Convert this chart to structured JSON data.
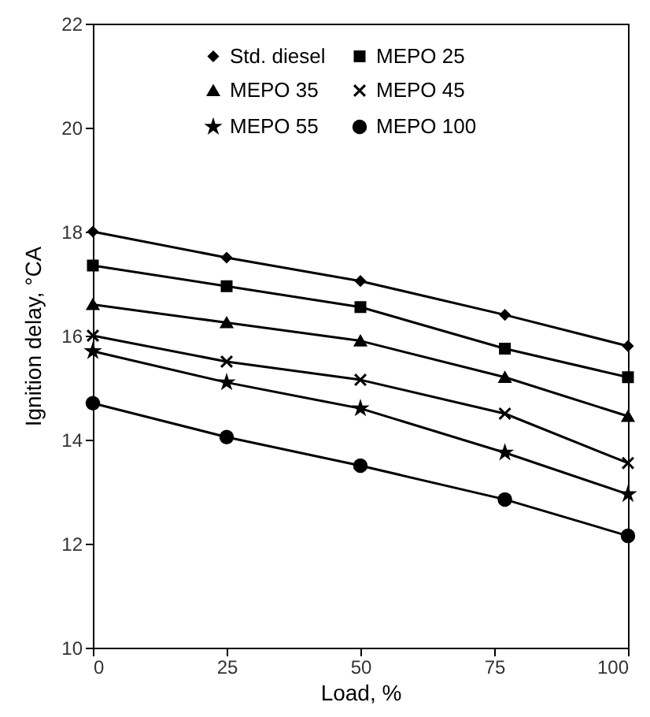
{
  "chart_data": {
    "type": "line",
    "xlabel": "Load, %",
    "ylabel": "Ignition delay, °CA",
    "x": [
      0,
      25,
      50,
      77,
      100
    ],
    "xlim": [
      0,
      100
    ],
    "xticks": [
      0,
      25,
      50,
      75,
      100
    ],
    "ylim": [
      10,
      22
    ],
    "yticks": [
      10,
      12,
      14,
      16,
      18,
      20,
      22
    ],
    "grid": false,
    "legend": "top",
    "line_style": "solid",
    "series": [
      {
        "name": "Std. diesel",
        "color": "#000000",
        "marker": "diamond",
        "values": [
          18.0,
          17.5,
          17.05,
          16.4,
          15.8
        ]
      },
      {
        "name": "MEPO 25",
        "color": "#000000",
        "marker": "square",
        "values": [
          17.35,
          16.95,
          16.55,
          15.75,
          15.2
        ]
      },
      {
        "name": "MEPO 35",
        "color": "#000000",
        "marker": "triangle",
        "values": [
          16.6,
          16.25,
          15.9,
          15.2,
          14.45
        ]
      },
      {
        "name": "MEPO 45",
        "color": "#000000",
        "marker": "cross",
        "values": [
          16.0,
          15.5,
          15.15,
          14.5,
          13.55
        ]
      },
      {
        "name": "MEPO 55",
        "color": "#000000",
        "marker": "star",
        "values": [
          15.7,
          15.1,
          14.6,
          13.75,
          12.95
        ]
      },
      {
        "name": "MEPO 100",
        "color": "#000000",
        "marker": "circle",
        "values": [
          14.7,
          14.05,
          13.5,
          12.85,
          12.15
        ]
      }
    ]
  }
}
